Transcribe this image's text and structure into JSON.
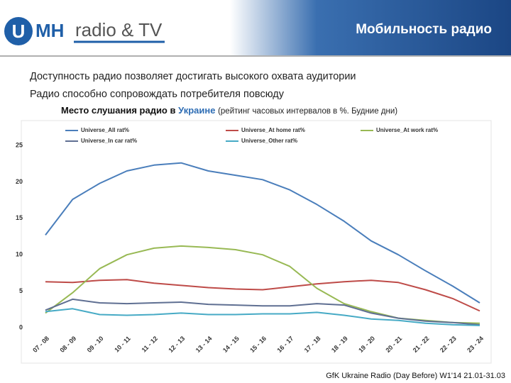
{
  "header": {
    "logo_mark": "U",
    "logo_letters": "MH",
    "logo_text": "radio & TV",
    "title": "Мобильность радио"
  },
  "bullets": [
    "Доступность радио позволяет достигать высокого охвата аудитории",
    "Радио способно сопровождать потребителя повсюду"
  ],
  "source": "GfK Ukraine Radio (Day Before) W1'14 21.01-31.03",
  "chart_data": {
    "type": "line",
    "title_lead": "Место слушания радио в",
    "title_country": "Украине",
    "subtitle": "(рейтинг часовых интервалов в %. Будние дни)",
    "categories": [
      "07 - 08",
      "08 - 09",
      "09 - 10",
      "10 - 11",
      "11 - 12",
      "12 - 13",
      "13 - 14",
      "14 - 15",
      "15 - 16",
      "16 - 17",
      "17 - 18",
      "18 - 19",
      "19 - 20",
      "20 - 21",
      "21 - 22",
      "22 - 23",
      "23 - 24"
    ],
    "series": [
      {
        "name": "Universe_All rat%",
        "color": "#4a7ebb",
        "values": [
          12.7,
          17.6,
          19.8,
          21.5,
          22.3,
          22.6,
          21.5,
          20.9,
          20.3,
          18.9,
          16.9,
          14.6,
          11.9,
          10.0,
          7.8,
          5.7,
          3.4
        ]
      },
      {
        "name": "Universe_At home rat%",
        "color": "#be4b48",
        "values": [
          6.3,
          6.2,
          6.5,
          6.6,
          6.1,
          5.8,
          5.5,
          5.3,
          5.2,
          5.6,
          6.0,
          6.3,
          6.5,
          6.2,
          5.2,
          4.0,
          2.3
        ]
      },
      {
        "name": "Universe_At work rat%",
        "color": "#98b954",
        "values": [
          2.0,
          4.8,
          8.1,
          10.0,
          10.9,
          11.2,
          11.0,
          10.7,
          10.0,
          8.4,
          5.4,
          3.3,
          2.2,
          1.3,
          1.0,
          0.7,
          0.6
        ]
      },
      {
        "name": "Universe_In car rat%",
        "color": "#5f6f92",
        "values": [
          2.4,
          3.9,
          3.4,
          3.3,
          3.4,
          3.5,
          3.2,
          3.1,
          3.0,
          3.0,
          3.3,
          3.1,
          2.0,
          1.3,
          0.9,
          0.7,
          0.4
        ]
      },
      {
        "name": "Universe_Other rat%",
        "color": "#46aac5",
        "values": [
          2.2,
          2.6,
          1.8,
          1.7,
          1.8,
          2.0,
          1.8,
          1.8,
          1.9,
          1.9,
          2.1,
          1.7,
          1.2,
          1.0,
          0.6,
          0.4,
          0.3
        ]
      }
    ],
    "ylim": [
      0,
      25
    ],
    "yticks": [
      0,
      5,
      10,
      15,
      20,
      25
    ],
    "grid": false
  }
}
